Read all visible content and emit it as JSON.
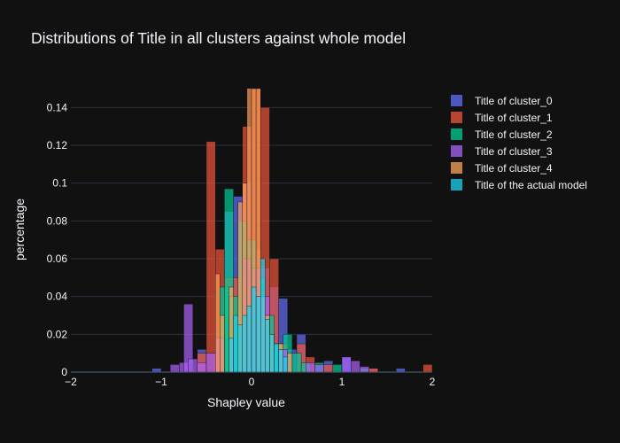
{
  "chart_data": {
    "type": "bar",
    "subtype": "overlaid-histogram",
    "title": "Distributions of Title in all clusters against whole model",
    "xlabel": "Shapley value",
    "ylabel": "percentage",
    "xlim": [
      -2,
      2
    ],
    "ylim": [
      0,
      0.15
    ],
    "xticks": [
      -2,
      -1,
      0,
      1,
      2
    ],
    "xtick_labels": [
      "−2",
      "−1",
      "0",
      "1",
      "2"
    ],
    "yticks": [
      0,
      0.02,
      0.04,
      0.06,
      0.08,
      0.1,
      0.12,
      0.14
    ],
    "ytick_labels": [
      "0",
      "0.02",
      "0.04",
      "0.06",
      "0.08",
      "0.1",
      "0.12",
      "0.14"
    ],
    "grid": true,
    "legend_position": "top-right",
    "series": [
      {
        "name": "Title of cluster_0",
        "color": "#636efa",
        "bars": [
          [
            -1.1,
            -1.0,
            0.002
          ],
          [
            -0.6,
            -0.5,
            0.012
          ],
          [
            -0.3,
            -0.2,
            0.085
          ],
          [
            -0.2,
            -0.1,
            0.093
          ],
          [
            -0.1,
            0.0,
            0.1
          ],
          [
            0.0,
            0.1,
            0.065
          ],
          [
            0.1,
            0.2,
            0.055
          ],
          [
            0.2,
            0.3,
            0.045
          ],
          [
            0.3,
            0.4,
            0.039
          ],
          [
            0.4,
            0.5,
            0.012
          ],
          [
            0.5,
            0.6,
            0.02
          ],
          [
            0.8,
            0.9,
            0.006
          ],
          [
            1.0,
            1.1,
            0.008
          ],
          [
            1.3,
            1.4,
            0.002
          ],
          [
            1.6,
            1.7,
            0.002
          ]
        ]
      },
      {
        "name": "Title of cluster_1",
        "color": "#ef553b",
        "bars": [
          [
            -0.6,
            -0.5,
            0.01
          ],
          [
            -0.5,
            -0.4,
            0.122
          ],
          [
            -0.4,
            -0.3,
            0.065
          ],
          [
            -0.3,
            -0.2,
            0.05
          ],
          [
            -0.2,
            -0.1,
            0.05
          ],
          [
            -0.1,
            0.0,
            0.13
          ],
          [
            0.0,
            0.1,
            0.15
          ],
          [
            0.1,
            0.2,
            0.14
          ],
          [
            0.2,
            0.3,
            0.06
          ],
          [
            0.3,
            0.4,
            0.015
          ],
          [
            0.5,
            0.6,
            0.015
          ],
          [
            0.6,
            0.7,
            0.008
          ],
          [
            0.8,
            0.9,
            0.004
          ],
          [
            1.3,
            1.4,
            0.002
          ],
          [
            1.9,
            2.0,
            0.004
          ]
        ]
      },
      {
        "name": "Title of cluster_2",
        "color": "#00cc96",
        "bars": [
          [
            -0.35,
            -0.25,
            0.045
          ],
          [
            -0.3,
            -0.2,
            0.097
          ],
          [
            -0.25,
            -0.15,
            0.04
          ],
          [
            -0.15,
            -0.05,
            0.08
          ],
          [
            -0.05,
            0.05,
            0.07
          ],
          [
            0.05,
            0.15,
            0.05
          ],
          [
            0.15,
            0.25,
            0.03
          ],
          [
            0.25,
            0.35,
            0.015
          ],
          [
            0.35,
            0.45,
            0.02
          ],
          [
            0.45,
            0.55,
            0.01
          ],
          [
            0.55,
            0.65,
            0.005
          ],
          [
            0.7,
            0.8,
            0.005
          ],
          [
            0.9,
            1.0,
            0.004
          ],
          [
            1.2,
            1.3,
            0.002
          ]
        ]
      },
      {
        "name": "Title of cluster_3",
        "color": "#ab63fa",
        "bars": [
          [
            -0.9,
            -0.8,
            0.004
          ],
          [
            -0.8,
            -0.7,
            0.005
          ],
          [
            -0.75,
            -0.65,
            0.036
          ],
          [
            -0.7,
            -0.6,
            0.007
          ],
          [
            -0.6,
            -0.5,
            0.005
          ],
          [
            -0.5,
            -0.4,
            0.01
          ],
          [
            -0.4,
            -0.3,
            0.018
          ],
          [
            -0.1,
            0.0,
            0.06
          ],
          [
            0.0,
            0.1,
            0.055
          ],
          [
            0.1,
            0.2,
            0.04
          ],
          [
            0.3,
            0.4,
            0.012
          ],
          [
            0.6,
            0.7,
            0.005
          ],
          [
            0.7,
            0.8,
            0.004
          ],
          [
            1.0,
            1.1,
            0.008
          ],
          [
            1.1,
            1.2,
            0.006
          ],
          [
            1.2,
            1.3,
            0.003
          ]
        ]
      },
      {
        "name": "Title of cluster_4",
        "color": "#ffa15a",
        "bars": [
          [
            -0.4,
            -0.35,
            0.052
          ],
          [
            -0.35,
            -0.3,
            0.03
          ],
          [
            -0.25,
            -0.2,
            0.045
          ],
          [
            -0.15,
            -0.1,
            0.09
          ],
          [
            -0.1,
            -0.05,
            0.1
          ],
          [
            -0.05,
            0.0,
            0.16
          ],
          [
            0.0,
            0.05,
            0.15
          ],
          [
            0.05,
            0.1,
            0.15
          ],
          [
            0.1,
            0.15,
            0.04
          ],
          [
            0.15,
            0.2,
            0.03
          ],
          [
            0.2,
            0.25,
            0.02
          ],
          [
            0.3,
            0.35,
            0.015
          ],
          [
            0.4,
            0.45,
            0.01
          ]
        ]
      },
      {
        "name": "Title of the actual model",
        "color": "#19d3f3",
        "bars": [
          [
            -0.25,
            -0.2,
            0.018
          ],
          [
            -0.2,
            -0.15,
            0.03
          ],
          [
            -0.15,
            -0.1,
            0.025
          ],
          [
            -0.1,
            -0.05,
            0.03
          ],
          [
            -0.05,
            0.0,
            0.035
          ],
          [
            0.0,
            0.05,
            0.045
          ],
          [
            0.05,
            0.1,
            0.04
          ],
          [
            0.1,
            0.15,
            0.06
          ],
          [
            0.15,
            0.2,
            0.028
          ],
          [
            0.2,
            0.25,
            0.02
          ],
          [
            0.25,
            0.3,
            0.015
          ],
          [
            0.3,
            0.35,
            0.012
          ],
          [
            0.35,
            0.4,
            0.008
          ]
        ]
      }
    ]
  }
}
